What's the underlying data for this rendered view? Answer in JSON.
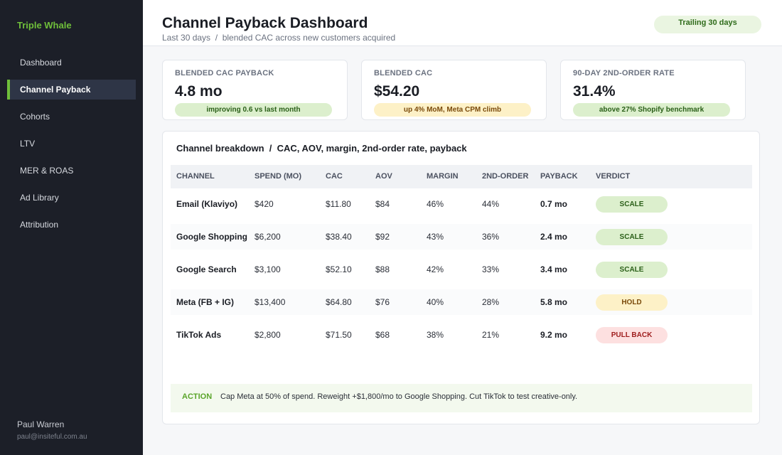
{
  "sidebar": {
    "brand": "Triple Whale",
    "items": [
      {
        "label": "Dashboard",
        "active": false
      },
      {
        "label": "Channel Payback",
        "active": true
      },
      {
        "label": "Cohorts",
        "active": false
      },
      {
        "label": "LTV",
        "active": false
      },
      {
        "label": "MER & ROAS",
        "active": false
      },
      {
        "label": "Ad Library",
        "active": false
      },
      {
        "label": "Attribution",
        "active": false
      }
    ],
    "user": {
      "name": "Paul Warren",
      "email": "paul@insiteful.com.au"
    }
  },
  "header": {
    "title": "Channel Payback Dashboard",
    "subtitle": "Last 30 days  /  blended CAC across new customers acquired",
    "range": "Trailing 30 days"
  },
  "kpis": [
    {
      "label": "BLENDED CAC PAYBACK",
      "value": "4.8 mo",
      "note": "improving 0.6 vs last month",
      "tone": "green"
    },
    {
      "label": "BLENDED CAC",
      "value": "$54.20",
      "note": "up 4% MoM, Meta CPM climb",
      "tone": "amber"
    },
    {
      "label": "90-DAY 2ND-ORDER RATE",
      "value": "31.4%",
      "note": "above 27% Shopify benchmark",
      "tone": "green"
    }
  ],
  "table": {
    "title": "Channel breakdown  /  CAC, AOV, margin, 2nd-order rate, payback",
    "columns": [
      "CHANNEL",
      "SPEND (MO)",
      "CAC",
      "AOV",
      "MARGIN",
      "2ND-ORDER",
      "PAYBACK",
      "VERDICT"
    ],
    "rows": [
      [
        "Email (Klaviyo)",
        "$420",
        "$11.80",
        "$84",
        "46%",
        "44%",
        "0.7 mo",
        "SCALE"
      ],
      [
        "Google Shopping",
        "$6,200",
        "$38.40",
        "$92",
        "43%",
        "36%",
        "2.4 mo",
        "SCALE"
      ],
      [
        "Google Search",
        "$3,100",
        "$52.10",
        "$88",
        "42%",
        "33%",
        "3.4 mo",
        "SCALE"
      ],
      [
        "Meta (FB + IG)",
        "$13,400",
        "$64.80",
        "$76",
        "40%",
        "28%",
        "5.8 mo",
        "HOLD"
      ],
      [
        "TikTok Ads",
        "$2,800",
        "$71.50",
        "$68",
        "38%",
        "21%",
        "9.2 mo",
        "PULL BACK"
      ]
    ]
  },
  "action": {
    "label": "ACTION",
    "text": "Cap Meta at 50% of spend. Reweight +$1,800/mo to Google Shopping. Cut TikTok to test creative-only."
  }
}
